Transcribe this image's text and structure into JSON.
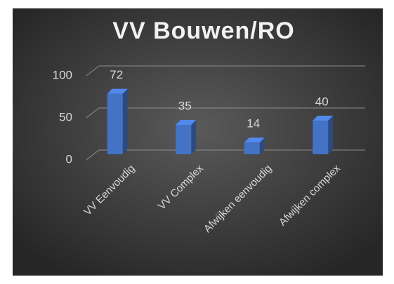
{
  "chart_data": {
    "type": "bar",
    "title": "VV Bouwen/RO",
    "categories": [
      "VV Eenvoudig",
      "VV Complex",
      "Afwijken eenvoudig",
      "Afwijken complex"
    ],
    "values": [
      72,
      35,
      14,
      40
    ],
    "color": "#4472c4",
    "ylim": [
      0,
      100
    ],
    "yticks": [
      0,
      50,
      100
    ],
    "grid": true,
    "data_labels": true
  }
}
